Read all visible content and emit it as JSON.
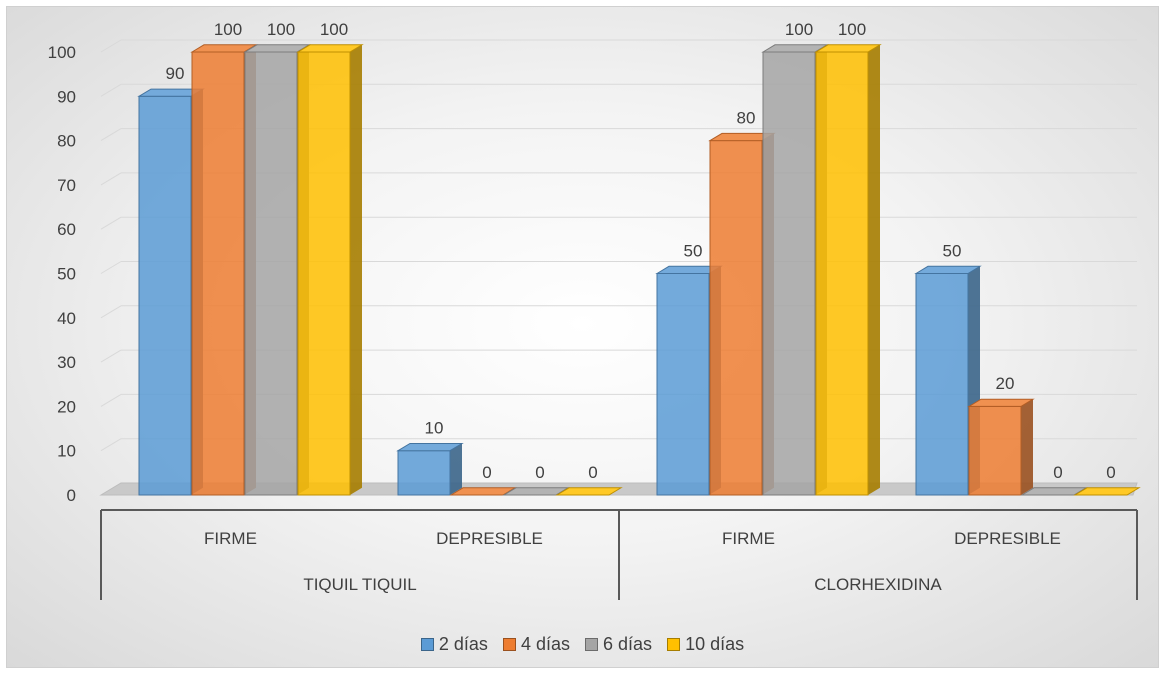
{
  "chart_data": {
    "type": "bar",
    "title": "",
    "ylim": [
      0,
      100
    ],
    "yticks": [
      0,
      10,
      20,
      30,
      40,
      50,
      60,
      70,
      80,
      90,
      100
    ],
    "grid": true,
    "style": "3d-clustered-column",
    "groups": [
      {
        "label": "TIQUIL TIQUIL",
        "categories": [
          "FIRME",
          "DEPRESIBLE"
        ]
      },
      {
        "label": "CLORHEXIDINA",
        "categories": [
          "FIRME",
          "DEPRESIBLE"
        ]
      }
    ],
    "categories": [
      "FIRME",
      "DEPRESIBLE",
      "FIRME",
      "DEPRESIBLE"
    ],
    "series": [
      {
        "name": "2 días",
        "values": [
          90,
          10,
          50,
          50
        ],
        "color": "#5b9bd5"
      },
      {
        "name": "4 días",
        "values": [
          100,
          0,
          80,
          20
        ],
        "color": "#ed7d31"
      },
      {
        "name": "6 días",
        "values": [
          100,
          0,
          100,
          0
        ],
        "color": "#a5a5a5"
      },
      {
        "name": "10 días",
        "values": [
          100,
          0,
          100,
          0
        ],
        "color": "#ffc000"
      }
    ],
    "legend_position": "bottom"
  }
}
